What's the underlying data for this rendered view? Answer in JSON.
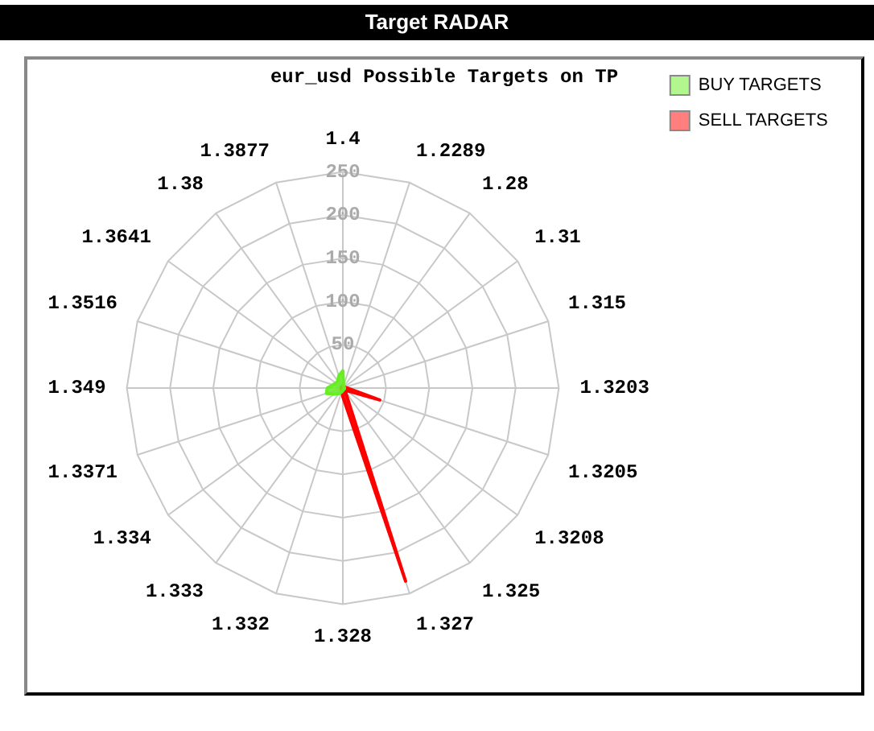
{
  "chart_data": {
    "type": "radar",
    "title": "Target RADAR",
    "subtitle": "eur_usd Possible Targets on TP",
    "categories": [
      "1.4",
      "1.2289",
      "1.28",
      "1.31",
      "1.315",
      "1.3203",
      "1.3205",
      "1.3208",
      "1.325",
      "1.327",
      "1.328",
      "1.332",
      "1.333",
      "1.334",
      "1.3371",
      "1.349",
      "1.3516",
      "1.3641",
      "1.38",
      "1.3877"
    ],
    "series": [
      {
        "name": "BUY TARGETS",
        "color": "#66ee22",
        "values": [
          20,
          3,
          2,
          2,
          2,
          2,
          2,
          2,
          2,
          2,
          3,
          5,
          8,
          12,
          20,
          18,
          12,
          10,
          10,
          15
        ]
      },
      {
        "name": "SELL TARGETS",
        "color": "#ff0000",
        "values": [
          3,
          2,
          2,
          2,
          3,
          5,
          45,
          5,
          5,
          235,
          10,
          3,
          2,
          2,
          2,
          2,
          2,
          2,
          2,
          2
        ]
      }
    ],
    "ylim": [
      0,
      250
    ],
    "yticks": [
      50,
      100,
      150,
      200,
      250
    ],
    "grid": true,
    "legend": "top right",
    "marker": "none"
  }
}
